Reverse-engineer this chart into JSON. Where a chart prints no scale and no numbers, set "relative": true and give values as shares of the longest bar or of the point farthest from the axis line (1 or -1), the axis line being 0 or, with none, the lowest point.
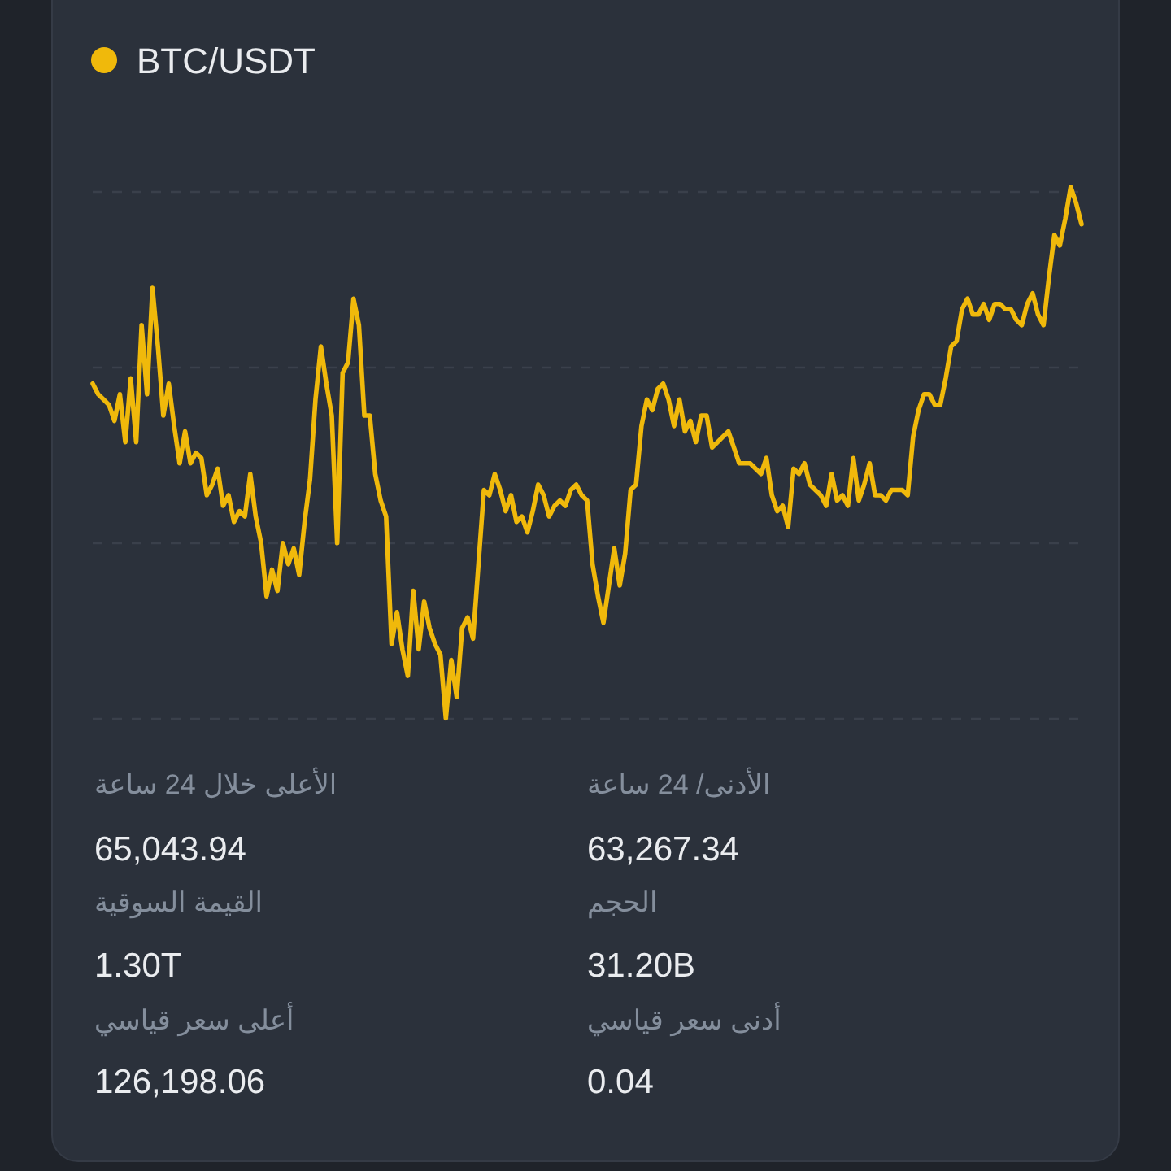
{
  "chart_data": {
    "type": "line",
    "relative": true,
    "grid": "y",
    "legend": "top left",
    "categories": [
      null,
      null,
      null,
      null,
      null,
      null,
      null,
      null,
      null,
      null,
      null,
      null,
      null,
      null,
      null,
      null,
      null,
      null,
      null,
      null,
      null,
      null,
      null,
      null,
      null,
      null,
      null,
      null,
      null,
      null,
      null,
      null,
      null,
      null,
      null,
      null,
      null,
      null,
      null,
      null,
      null,
      null,
      null,
      null,
      null,
      null,
      null,
      null,
      null,
      null,
      null,
      null,
      null,
      null,
      null,
      null,
      null,
      null,
      null,
      null,
      null,
      null,
      null,
      null,
      null,
      null,
      null,
      null,
      null,
      null,
      null,
      null,
      null,
      null,
      null,
      null,
      null,
      null,
      null,
      null,
      null,
      null,
      null,
      null,
      null,
      null,
      null,
      null,
      null,
      null,
      null,
      null,
      null,
      null,
      null,
      null,
      null,
      null,
      null,
      null,
      null,
      null,
      null,
      null,
      null,
      null,
      null,
      null,
      null,
      null,
      null,
      null,
      null,
      null,
      null,
      null,
      null,
      null,
      null,
      null,
      null,
      null,
      null,
      null,
      null,
      null,
      null,
      null,
      null,
      null,
      null,
      null,
      null,
      null,
      null,
      null,
      null,
      null,
      null,
      null,
      null,
      null,
      null,
      null,
      null,
      null,
      null,
      null,
      null,
      null,
      null,
      null,
      null,
      null,
      null,
      null,
      null,
      null,
      null,
      null,
      null,
      null,
      null,
      null,
      null,
      null,
      null,
      null,
      null,
      null,
      null,
      null,
      null,
      null,
      null,
      null,
      null,
      null,
      null,
      null,
      null,
      null,
      null
    ],
    "series": [
      {
        "name": "BTC/USDT",
        "color": "#f0b90b",
        "values": [
          0.63,
          0.61,
          0.6,
          0.59,
          0.56,
          0.61,
          0.52,
          0.64,
          0.52,
          0.74,
          0.61,
          0.81,
          0.7,
          0.57,
          0.63,
          0.55,
          0.48,
          0.54,
          0.48,
          0.5,
          0.49,
          0.42,
          0.44,
          0.47,
          0.4,
          0.42,
          0.37,
          0.39,
          0.38,
          0.46,
          0.38,
          0.33,
          0.23,
          0.28,
          0.24,
          0.33,
          0.29,
          0.32,
          0.27,
          0.37,
          0.45,
          0.6,
          0.7,
          0.63,
          0.57,
          0.33,
          0.65,
          0.67,
          0.79,
          0.74,
          0.57,
          0.57,
          0.46,
          0.41,
          0.38,
          0.14,
          0.2,
          0.13,
          0.08,
          0.24,
          0.13,
          0.22,
          0.17,
          0.14,
          0.12,
          0,
          0.11,
          0.04,
          0.17,
          0.19,
          0.15,
          0.29,
          0.43,
          0.42,
          0.46,
          0.43,
          0.39,
          0.42,
          0.37,
          0.38,
          0.35,
          0.39,
          0.44,
          0.42,
          0.38,
          0.4,
          0.41,
          0.4,
          0.43,
          0.44,
          0.42,
          0.41,
          0.29,
          0.23,
          0.18,
          0.25,
          0.32,
          0.25,
          0.31,
          0.43,
          0.44,
          0.55,
          0.6,
          0.58,
          0.62,
          0.63,
          0.6,
          0.55,
          0.6,
          0.54,
          0.56,
          0.52,
          0.57,
          0.57,
          0.51,
          0.52,
          0.53,
          0.54,
          0.51,
          0.48,
          0.48,
          0.48,
          0.47,
          0.46,
          0.49,
          0.42,
          0.39,
          0.4,
          0.36,
          0.47,
          0.46,
          0.48,
          0.44,
          0.43,
          0.42,
          0.4,
          0.46,
          0.41,
          0.42,
          0.4,
          0.49,
          0.41,
          0.44,
          0.48,
          0.42,
          0.42,
          0.41,
          0.43,
          0.43,
          0.43,
          0.42,
          0.53,
          0.58,
          0.61,
          0.61,
          0.59,
          0.59,
          0.64,
          0.7,
          0.71,
          0.77,
          0.79,
          0.76,
          0.76,
          0.78,
          0.75,
          0.78,
          0.78,
          0.77,
          0.77,
          0.75,
          0.74,
          0.78,
          0.8,
          0.76,
          0.74,
          0.83,
          0.91,
          0.89,
          0.94,
          1,
          0.97,
          0.93
        ]
      }
    ],
    "annotations": [
      "الأعلى خلال 24 ساعة",
      "65,043.94",
      "الأدنى/ 24 ساعة",
      "63,267.34",
      "القيمة السوقية",
      "1.30T",
      "الحجم",
      "31.20B",
      "أعلى سعر قياسي",
      "126,198.06",
      "أدنى سعر قياسي",
      "0.04"
    ]
  }
}
